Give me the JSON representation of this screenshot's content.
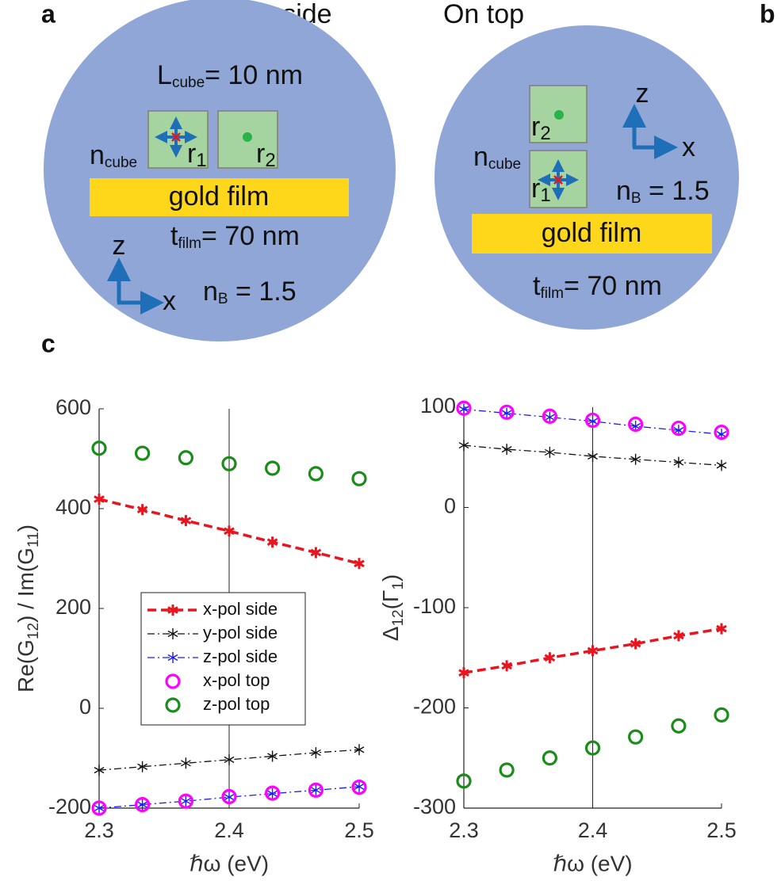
{
  "panel_labels": [
    "a",
    "b",
    "c"
  ],
  "diagrams": [
    {
      "title": "On side",
      "cube_size": [
        "L",
        "cube",
        "= 10 nm"
      ],
      "cube_index": [
        "n",
        "cube"
      ],
      "positions": [
        [
          "r",
          "1"
        ],
        [
          "r",
          "2"
        ]
      ],
      "film": "gold film",
      "film_thickness": [
        "t",
        "film",
        "= 70 nm"
      ],
      "axes": [
        "z",
        "x"
      ],
      "background_index": [
        "n",
        "B",
        " = 1.5"
      ]
    },
    {
      "title": "On top",
      "cube_index": [
        "n",
        "cube"
      ],
      "positions": [
        [
          "r",
          "1"
        ],
        [
          "r",
          "2"
        ]
      ],
      "film": "gold film",
      "film_thickness": [
        "t",
        "film",
        "= 70 nm"
      ],
      "axes": [
        "z",
        "x"
      ],
      "background_index": [
        "n",
        "B",
        " = 1.5"
      ]
    }
  ],
  "chart_data": [
    {
      "type": "line",
      "xlabel": "ℏω (eV)",
      "ylabel": [
        "Re(G",
        "12",
        ") / Im(G",
        "11",
        ")"
      ],
      "x": [
        2.3,
        2.3333,
        2.3667,
        2.4,
        2.4333,
        2.4667,
        2.5
      ],
      "xlim": [
        2.3,
        2.5
      ],
      "xticks": [
        2.3,
        2.4,
        2.5
      ],
      "ylim": [
        -200,
        600
      ],
      "yticks": [
        -200,
        0,
        200,
        400,
        600
      ],
      "vlines": [
        2.4
      ],
      "legend": "center left",
      "series": [
        {
          "name": "x-pol side",
          "color": "#e8141e",
          "line": "dashed",
          "marker": "star",
          "values": [
            419,
            398,
            376,
            355,
            333,
            312,
            290
          ]
        },
        {
          "name": "y-pol side",
          "color": "#111111",
          "line": "dashdot",
          "marker": "star",
          "values": [
            -124,
            -117,
            -110,
            -103,
            -96,
            -89,
            -83
          ]
        },
        {
          "name": "z-pol side",
          "color": "#1a1aff",
          "line": "dashdot",
          "marker": "star",
          "values": [
            -200,
            -193,
            -186,
            -178,
            -171,
            -164,
            -157
          ]
        },
        {
          "name": "x-pol top",
          "color": "#ff00ff",
          "line": "none",
          "marker": "circle",
          "values": [
            -200,
            -193,
            -186,
            -177,
            -170,
            -164,
            -158
          ]
        },
        {
          "name": "z-pol top",
          "color": "#1a8c1a",
          "line": "none",
          "marker": "circle",
          "values": [
            521,
            511,
            502,
            490,
            481,
            470,
            460
          ]
        }
      ]
    },
    {
      "type": "line",
      "xlabel": "ℏω (eV)",
      "ylabel": [
        "Δ",
        "12",
        "(Γ",
        "1",
        ")"
      ],
      "x": [
        2.3,
        2.3333,
        2.3667,
        2.4,
        2.4333,
        2.4667,
        2.5
      ],
      "xlim": [
        2.3,
        2.5
      ],
      "xticks": [
        2.3,
        2.4,
        2.5
      ],
      "ylim": [
        -300,
        100
      ],
      "yticks": [
        -300,
        -200,
        -100,
        0,
        100
      ],
      "vlines": [
        2.4
      ],
      "legend": "none",
      "series": [
        {
          "color": "#e8141e",
          "line": "dashed",
          "marker": "star",
          "values": [
            -165,
            -158,
            -150,
            -143,
            -136,
            -128,
            -121
          ]
        },
        {
          "color": "#111111",
          "line": "dashdot",
          "marker": "star",
          "values": [
            62,
            58,
            55,
            51,
            48,
            45,
            42
          ]
        },
        {
          "color": "#1a1aff",
          "line": "dashdot",
          "marker": "star",
          "values": [
            98,
            94,
            90,
            86,
            81,
            77,
            73
          ]
        },
        {
          "color": "#ff00ff",
          "line": "none",
          "marker": "circle",
          "values": [
            99,
            95,
            91,
            87,
            83,
            79,
            75
          ]
        },
        {
          "color": "#1a8c1a",
          "line": "none",
          "marker": "circle",
          "values": [
            -273,
            -262,
            -250,
            -240,
            -229,
            -218,
            -207
          ]
        }
      ]
    }
  ]
}
